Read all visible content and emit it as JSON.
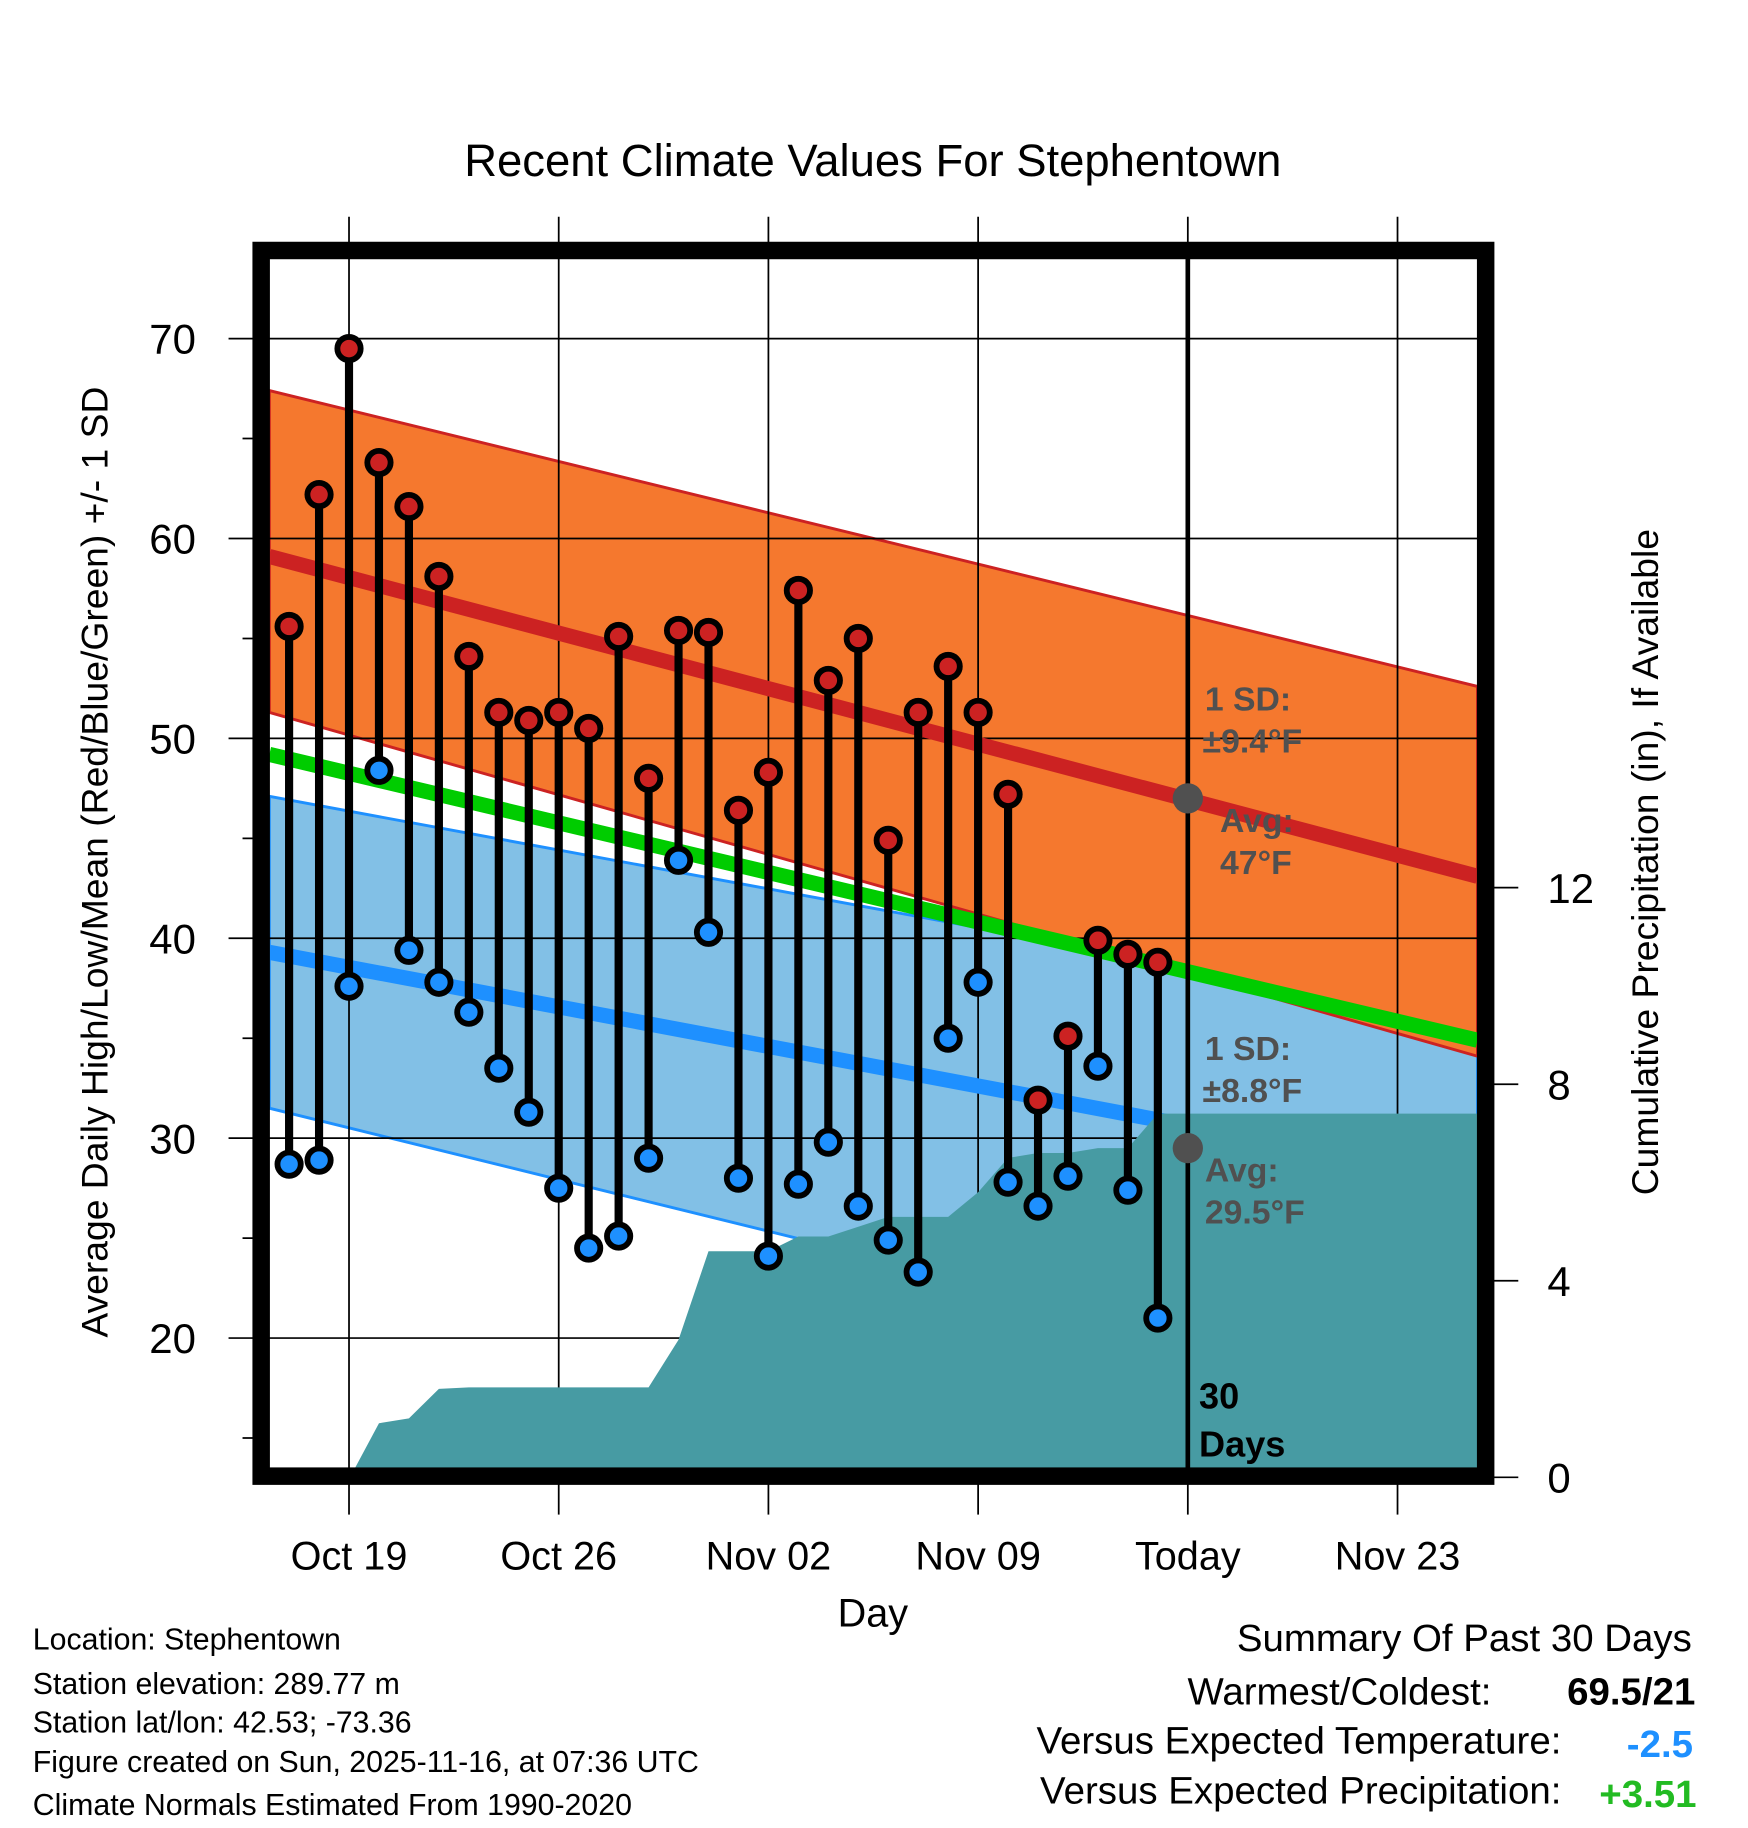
{
  "chart_data": {
    "type": "line",
    "title": "Recent Climate Values For Stephentown",
    "xlabel": "Day",
    "ylabel": "Average Daily High/Low/Mean (Red/Blue/Green) +/- 1 SD",
    "y2label": "Cumulative Precipitation (in), If Available",
    "ylim": [
      13.5,
      74
    ],
    "y2lim": [
      0,
      24.8
    ],
    "yticks": [
      "20",
      "30",
      "40",
      "50",
      "60",
      "70"
    ],
    "y2ticks": [
      "0",
      "4",
      "8",
      "12"
    ],
    "xticks": [
      {
        "label": "Oct 19",
        "day": 2
      },
      {
        "label": "Oct 26",
        "day": 9
      },
      {
        "label": "Nov 02",
        "day": 16
      },
      {
        "label": "Nov 09",
        "day": 23
      },
      {
        "label": "Today",
        "day": 30
      },
      {
        "label": "Nov 23",
        "day": 37
      }
    ],
    "xlim_days": [
      -0.66,
      39.67
    ],
    "grid": true,
    "days": [
      "Oct 17",
      "Oct 18",
      "Oct 19",
      "Oct 20",
      "Oct 21",
      "Oct 22",
      "Oct 23",
      "Oct 24",
      "Oct 25",
      "Oct 26",
      "Oct 27",
      "Oct 28",
      "Oct 29",
      "Oct 30",
      "Oct 31",
      "Nov 01",
      "Nov 02",
      "Nov 03",
      "Nov 04",
      "Nov 05",
      "Nov 06",
      "Nov 07",
      "Nov 08",
      "Nov 09",
      "Nov 10",
      "Nov 11",
      "Nov 12",
      "Nov 13",
      "Nov 14",
      "Nov 15"
    ],
    "series": [
      {
        "name": "Daily High",
        "values": [
          55.6,
          62.2,
          69.5,
          63.8,
          61.6,
          58.1,
          54.1,
          51.3,
          50.9,
          51.3,
          50.5,
          55.1,
          48.0,
          55.4,
          55.3,
          46.4,
          48.3,
          57.4,
          52.9,
          55.0,
          44.9,
          51.3,
          53.6,
          51.3,
          47.2,
          31.9,
          35.1,
          39.9,
          39.2,
          38.8
        ]
      },
      {
        "name": "Daily Low",
        "values": [
          28.7,
          28.9,
          37.6,
          48.4,
          39.4,
          37.8,
          36.3,
          33.5,
          31.3,
          27.5,
          24.5,
          25.1,
          29.0,
          43.9,
          40.3,
          28.0,
          24.1,
          27.7,
          29.8,
          26.6,
          24.9,
          23.3,
          35.0,
          37.8,
          27.8,
          26.6,
          28.1,
          33.6,
          27.4,
          21.0
        ]
      },
      {
        "name": "Cumulative Precipitation (in)",
        "days": [
          2.2,
          3,
          4,
          5,
          6,
          7,
          8,
          9,
          10,
          11,
          12,
          13,
          14,
          15,
          16,
          17,
          18,
          19,
          20,
          21,
          22,
          23,
          24,
          25,
          26,
          27,
          28,
          29,
          39.67
        ],
        "values": [
          0,
          1.1,
          1.2,
          1.8,
          1.83,
          1.83,
          1.83,
          1.83,
          1.83,
          1.83,
          1.83,
          2.8,
          4.6,
          4.6,
          4.6,
          4.9,
          4.9,
          5.1,
          5.3,
          5.3,
          5.3,
          5.8,
          6.5,
          6.6,
          6.6,
          6.7,
          6.7,
          7.4,
          7.4
        ]
      }
    ],
    "normals": {
      "high_avg": [
        59.1,
        43.1
      ],
      "high_sd_upper": [
        67.4,
        52.6
      ],
      "high_sd_lower": [
        51.3,
        34.1
      ],
      "mean_avg": [
        49.2,
        34.9
      ],
      "low_avg": [
        39.3,
        27.9
      ],
      "low_sd_upper": [
        47.1,
        35.9
      ],
      "low_sd_lower": [
        31.5,
        16.6
      ]
    },
    "annotations": {
      "high_sd_l1": "1 SD:",
      "high_sd_l2": "±9.4°F",
      "high_avg_l1": "Avg:",
      "high_avg_l2": "47°F",
      "high_avg_value": 47,
      "low_sd_l1": "1 SD:",
      "low_sd_l2": "±8.8°F",
      "low_avg_l1": "Avg:",
      "low_avg_l2": "29.5°F",
      "low_avg_value": 29.5,
      "days_l1": "30",
      "days_l2": "Days"
    },
    "colors": {
      "high_band": "#F5782E",
      "high_line": "#CC2222",
      "mean_line": "#00CC00",
      "low_band": "#82C0E6",
      "low_line": "#1E90FF",
      "precip": "#479BA3",
      "annotation": "#505050"
    }
  },
  "footer": {
    "location": "Location: Stephentown",
    "elevation": "Station elevation: 289.77 m",
    "latlon": "Station lat/lon: 42.53; -73.36",
    "created": "Figure created on Sun, 2025-11-16, at 07:36 UTC",
    "normals": "Climate Normals Estimated From 1990-2020"
  },
  "summary": {
    "title": "Summary Of Past 30 Days",
    "warm_label": "Warmest/Coldest:",
    "warm_value": "69.5/21",
    "temp_label": "Versus Expected Temperature:",
    "temp_value": "-2.5",
    "temp_color": "#1E90FF",
    "precip_label": "Versus Expected Precipitation:",
    "precip_value": "+3.51",
    "precip_color": "#22BB22"
  }
}
